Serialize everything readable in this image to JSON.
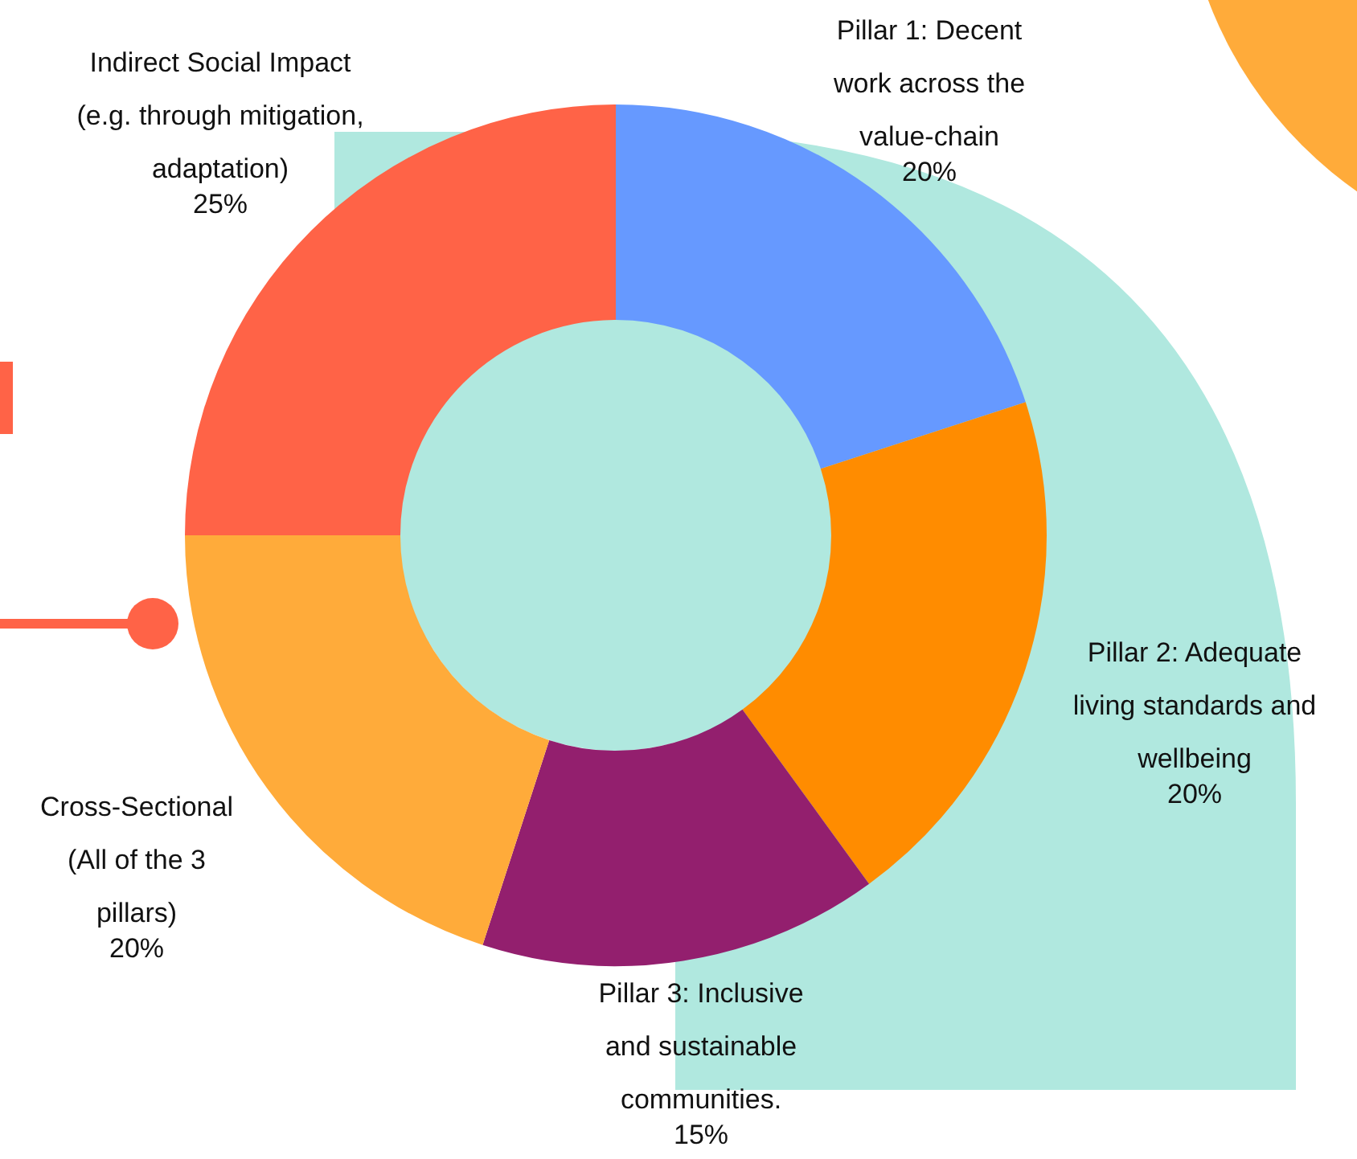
{
  "chart_data": {
    "type": "donut",
    "categories": [
      "Pillar 1: Decent work across the value-chain",
      "Pillar 2: Adequate living standards and wellbeing",
      "Pillar 3: Inclusive and sustainable communities.",
      "Cross-Sectional (All of the 3 pillars)",
      "Indirect Social Impact (e.g. through mitigation, adaptation)"
    ],
    "values": [
      20,
      20,
      15,
      20,
      25
    ],
    "value_labels": [
      "20%",
      "20%",
      "15%",
      "20%",
      "25%"
    ],
    "colors": [
      "#6699ff",
      "#ff8c00",
      "#931f6e",
      "#ffab3a",
      "#ff6347"
    ],
    "legend": false
  }
}
